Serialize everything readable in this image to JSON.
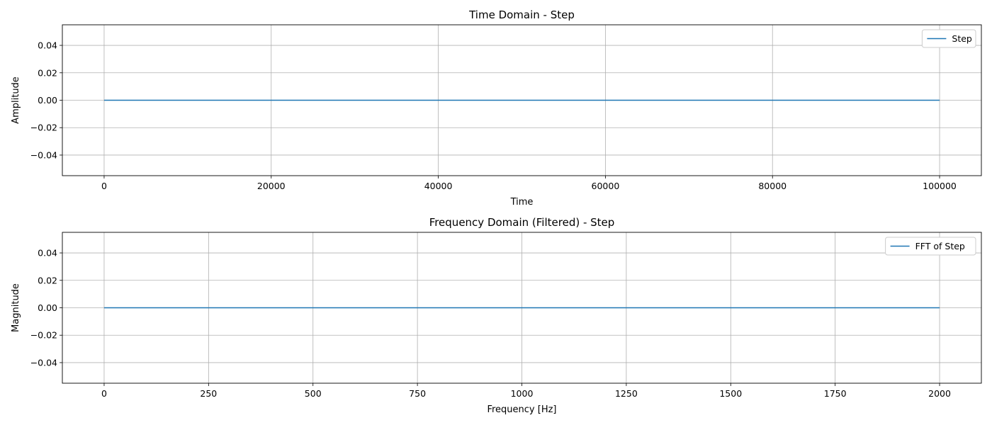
{
  "chart_data": [
    {
      "type": "line",
      "title": "Time Domain - Step",
      "xlabel": "Time",
      "ylabel": "Amplitude",
      "xlim": [
        -5000,
        105000
      ],
      "ylim": [
        -0.055,
        0.055
      ],
      "xticks": [
        0,
        20000,
        40000,
        60000,
        80000,
        100000
      ],
      "xtick_labels": [
        "0",
        "20000",
        "40000",
        "60000",
        "80000",
        "100000"
      ],
      "yticks": [
        -0.04,
        -0.02,
        0.0,
        0.02,
        0.04
      ],
      "ytick_labels": [
        "−0.04",
        "−0.02",
        "0.00",
        "0.02",
        "0.04"
      ],
      "grid": true,
      "legend_position": "top-right",
      "series": [
        {
          "name": "Step",
          "color": "#1f77b4",
          "x": [
            0,
            100000
          ],
          "y": [
            0,
            0
          ]
        }
      ]
    },
    {
      "type": "line",
      "title": "Frequency Domain (Filtered) - Step",
      "xlabel": "Frequency [Hz]",
      "ylabel": "Magnitude",
      "xlim": [
        -100,
        2100
      ],
      "ylim": [
        -0.055,
        0.055
      ],
      "xticks": [
        0,
        250,
        500,
        750,
        1000,
        1250,
        1500,
        1750,
        2000
      ],
      "xtick_labels": [
        "0",
        "250",
        "500",
        "750",
        "1000",
        "1250",
        "1500",
        "1750",
        "2000"
      ],
      "yticks": [
        -0.04,
        -0.02,
        0.0,
        0.02,
        0.04
      ],
      "ytick_labels": [
        "−0.04",
        "−0.02",
        "0.00",
        "0.02",
        "0.04"
      ],
      "grid": true,
      "legend_position": "top-right",
      "series": [
        {
          "name": "FFT of Step",
          "color": "#1f77b4",
          "x": [
            0,
            2000
          ],
          "y": [
            0,
            0
          ]
        }
      ]
    }
  ]
}
